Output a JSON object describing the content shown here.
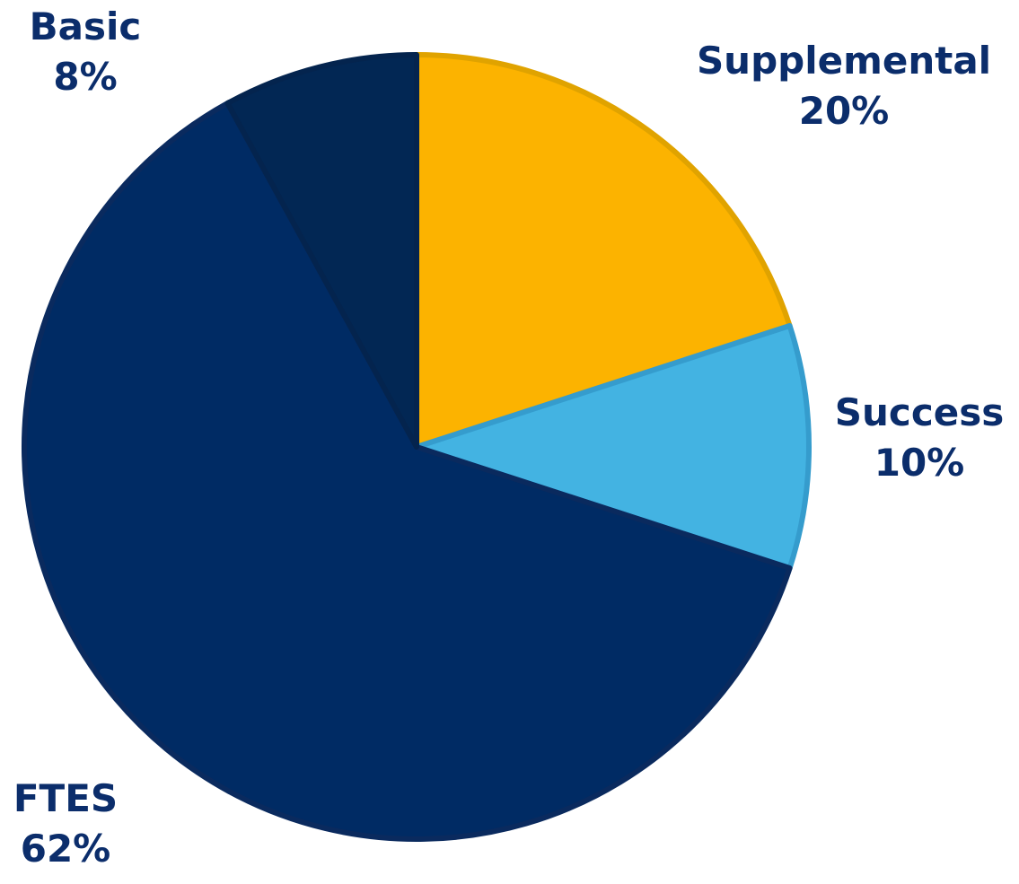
{
  "chart_data": {
    "type": "pie",
    "start_angle_deg": 0,
    "direction": "clockwise",
    "legend": "none",
    "slices": [
      {
        "name": "Supplemental",
        "value": 20,
        "label": "Supplemental",
        "pct_label": "20%",
        "color": "#fcb300",
        "stroke": "#e0a300"
      },
      {
        "name": "Success",
        "value": 10,
        "label": "Success",
        "pct_label": "10%",
        "color": "#43b3e2",
        "stroke": "#359ccd"
      },
      {
        "name": "FTES",
        "value": 62,
        "label": "FTES",
        "pct_label": "62%",
        "color": "#002b64",
        "stroke": "#0a2a5e"
      },
      {
        "name": "Basic",
        "value": 8,
        "label": "Basic",
        "pct_label": "8%",
        "color": "#022754",
        "stroke": "#04244e"
      }
    ]
  }
}
